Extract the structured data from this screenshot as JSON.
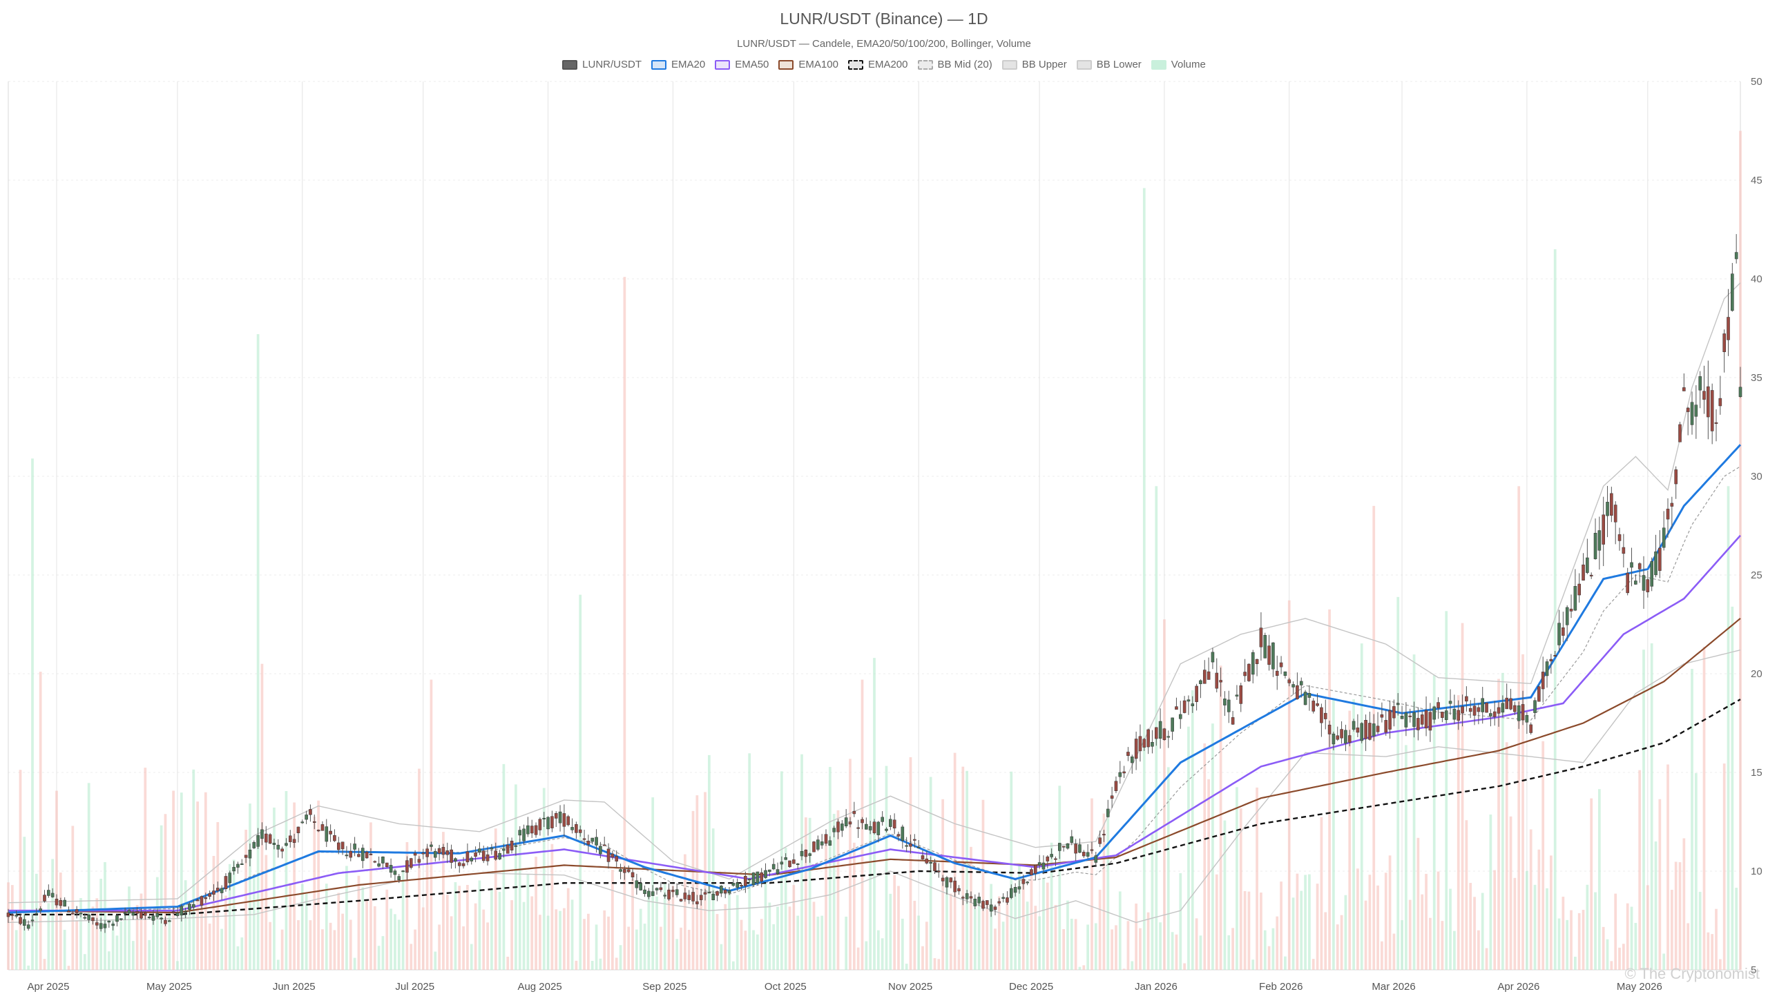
{
  "chart_data": {
    "type": "candlestick",
    "title": "LUNR/USDT (Binance) — 1D",
    "subtitle": "LUNR/USDT — Candele, EMA20/50/100/200, Bollinger, Volume",
    "legend": [
      {
        "name": "LUNR/USDT",
        "color": "#666666",
        "border": "#555555",
        "style": "solid"
      },
      {
        "name": "EMA20",
        "color": "#d6e6f8",
        "border": "#1f7ae0",
        "style": "solid"
      },
      {
        "name": "EMA50",
        "color": "#ece4fb",
        "border": "#8b5cf6",
        "style": "solid"
      },
      {
        "name": "EMA100",
        "color": "#efe3d8",
        "border": "#8b4a2b",
        "style": "solid"
      },
      {
        "name": "EMA200",
        "color": "#e6e6e6",
        "border": "#111111",
        "style": "dashed"
      },
      {
        "name": "BB Mid (20)",
        "color": "#ececec",
        "border": "#aaaaaa",
        "style": "dashed"
      },
      {
        "name": "BB Upper",
        "color": "#e4e4e4",
        "border": "#cccccc",
        "style": "solid"
      },
      {
        "name": "BB Lower",
        "color": "#e4e4e4",
        "border": "#cccccc",
        "style": "solid"
      },
      {
        "name": "Volume",
        "color": "#c9f0dc",
        "border": "#c9f0dc",
        "style": "solid"
      }
    ],
    "y_axis": {
      "min": 5,
      "max": 50,
      "ticks": [
        5,
        10,
        15,
        20,
        25,
        30,
        35,
        40,
        45,
        50
      ],
      "position": "right"
    },
    "x_axis": {
      "start": "2025-03-20",
      "end": "2026-05-24",
      "ticks": [
        {
          "date": "2025-04-01",
          "label": "Apr 2025"
        },
        {
          "date": "2025-05-01",
          "label": "May 2025"
        },
        {
          "date": "2025-06-01",
          "label": "Jun 2025"
        },
        {
          "date": "2025-07-01",
          "label": "Jul 2025"
        },
        {
          "date": "2025-08-01",
          "label": "Aug 2025"
        },
        {
          "date": "2025-09-01",
          "label": "Sep 2025"
        },
        {
          "date": "2025-10-01",
          "label": "Oct 2025"
        },
        {
          "date": "2025-11-01",
          "label": "Nov 2025"
        },
        {
          "date": "2025-12-01",
          "label": "Dec 2025"
        },
        {
          "date": "2026-01-01",
          "label": "Jan 2026"
        },
        {
          "date": "2026-02-01",
          "label": "Feb 2026"
        },
        {
          "date": "2026-03-01",
          "label": "Mar 2026"
        },
        {
          "date": "2026-04-01",
          "label": "Apr 2026"
        },
        {
          "date": "2026-05-01",
          "label": "May 2026"
        }
      ]
    },
    "grid": true,
    "price_anchors": [
      [
        "2025-03-20",
        7.8
      ],
      [
        "2025-03-25",
        7.3
      ],
      [
        "2025-03-30",
        8.8
      ],
      [
        "2025-04-05",
        8.0
      ],
      [
        "2025-04-12",
        7.2
      ],
      [
        "2025-04-20",
        7.9
      ],
      [
        "2025-04-28",
        7.6
      ],
      [
        "2025-05-05",
        8.3
      ],
      [
        "2025-05-12",
        9.2
      ],
      [
        "2025-05-18",
        10.5
      ],
      [
        "2025-05-22",
        11.8
      ],
      [
        "2025-05-28",
        11.3
      ],
      [
        "2025-06-03",
        12.7
      ],
      [
        "2025-06-10",
        11.2
      ],
      [
        "2025-06-18",
        10.8
      ],
      [
        "2025-06-25",
        9.9
      ],
      [
        "2025-07-02",
        11.1
      ],
      [
        "2025-07-10",
        10.6
      ],
      [
        "2025-07-20",
        11.0
      ],
      [
        "2025-07-28",
        12.2
      ],
      [
        "2025-08-05",
        12.7
      ],
      [
        "2025-08-12",
        11.5
      ],
      [
        "2025-08-18",
        10.4
      ],
      [
        "2025-08-25",
        9.0
      ],
      [
        "2025-09-01",
        8.8
      ],
      [
        "2025-09-08",
        8.6
      ],
      [
        "2025-09-15",
        9.2
      ],
      [
        "2025-09-22",
        9.7
      ],
      [
        "2025-10-01",
        10.6
      ],
      [
        "2025-10-10",
        11.6
      ],
      [
        "2025-10-15",
        12.8
      ],
      [
        "2025-10-20",
        12.0
      ],
      [
        "2025-10-25",
        12.6
      ],
      [
        "2025-11-01",
        11.0
      ],
      [
        "2025-11-08",
        9.5
      ],
      [
        "2025-11-15",
        8.5
      ],
      [
        "2025-11-20",
        8.2
      ],
      [
        "2025-11-25",
        9.0
      ],
      [
        "2025-12-01",
        10.2
      ],
      [
        "2025-12-08",
        11.5
      ],
      [
        "2025-12-15",
        10.6
      ],
      [
        "2025-12-20",
        14.5
      ],
      [
        "2025-12-25",
        16.2
      ],
      [
        "2026-01-02",
        17.3
      ],
      [
        "2026-01-08",
        18.8
      ],
      [
        "2026-01-13",
        20.4
      ],
      [
        "2026-01-18",
        17.8
      ],
      [
        "2026-01-25",
        21.8
      ],
      [
        "2026-01-31",
        20.0
      ],
      [
        "2026-02-05",
        18.7
      ],
      [
        "2026-02-12",
        16.9
      ],
      [
        "2026-02-20",
        17.1
      ],
      [
        "2026-02-28",
        18.0
      ],
      [
        "2026-03-05",
        17.4
      ],
      [
        "2026-03-12",
        18.2
      ],
      [
        "2026-03-20",
        18.2
      ],
      [
        "2026-03-28",
        18.4
      ],
      [
        "2026-04-02",
        17.5
      ],
      [
        "2026-04-08",
        21.5
      ],
      [
        "2026-04-12",
        23.6
      ],
      [
        "2026-04-17",
        25.6
      ],
      [
        "2026-04-22",
        28.8
      ],
      [
        "2026-04-26",
        24.8
      ],
      [
        "2026-05-01",
        24.8
      ],
      [
        "2026-05-05",
        26.5
      ],
      [
        "2026-05-10",
        33.5
      ],
      [
        "2026-05-14",
        34.0
      ],
      [
        "2026-05-18",
        33.0
      ],
      [
        "2026-05-21",
        37.5
      ],
      [
        "2026-05-23",
        40.5
      ],
      [
        "2026-05-24",
        35.0
      ]
    ],
    "ema_anchors": {
      "EMA20": [
        [
          "2025-03-20",
          7.9
        ],
        [
          "2025-05-01",
          8.2
        ],
        [
          "2025-06-05",
          11.0
        ],
        [
          "2025-07-10",
          10.9
        ],
        [
          "2025-08-05",
          11.8
        ],
        [
          "2025-08-25",
          10.2
        ],
        [
          "2025-09-15",
          9.0
        ],
        [
          "2025-10-05",
          10.1
        ],
        [
          "2025-10-25",
          11.8
        ],
        [
          "2025-11-10",
          10.4
        ],
        [
          "2025-11-25",
          9.6
        ],
        [
          "2025-12-15",
          10.7
        ],
        [
          "2026-01-05",
          15.5
        ],
        [
          "2026-02-05",
          19.0
        ],
        [
          "2026-03-01",
          18.0
        ],
        [
          "2026-04-02",
          18.8
        ],
        [
          "2026-04-20",
          24.8
        ],
        [
          "2026-05-01",
          25.3
        ],
        [
          "2026-05-10",
          28.5
        ],
        [
          "2026-05-24",
          31.6
        ]
      ],
      "EMA50": [
        [
          "2025-03-20",
          8.0
        ],
        [
          "2025-05-01",
          8.0
        ],
        [
          "2025-06-10",
          9.9
        ],
        [
          "2025-08-05",
          11.1
        ],
        [
          "2025-09-20",
          9.6
        ],
        [
          "2025-10-25",
          11.1
        ],
        [
          "2025-11-30",
          10.2
        ],
        [
          "2025-12-20",
          10.8
        ],
        [
          "2026-01-25",
          15.3
        ],
        [
          "2026-02-25",
          17.0
        ],
        [
          "2026-03-25",
          17.8
        ],
        [
          "2026-04-10",
          18.5
        ],
        [
          "2026-04-25",
          22.0
        ],
        [
          "2026-05-10",
          23.8
        ],
        [
          "2026-05-24",
          27.0
        ]
      ],
      "EMA100": [
        [
          "2025-03-20",
          8.0
        ],
        [
          "2025-05-01",
          7.9
        ],
        [
          "2025-06-15",
          9.3
        ],
        [
          "2025-08-05",
          10.3
        ],
        [
          "2025-09-25",
          9.8
        ],
        [
          "2025-10-25",
          10.6
        ],
        [
          "2025-11-30",
          10.3
        ],
        [
          "2025-12-20",
          10.7
        ],
        [
          "2026-01-25",
          13.7
        ],
        [
          "2026-02-25",
          15.0
        ],
        [
          "2026-03-25",
          16.1
        ],
        [
          "2026-04-15",
          17.5
        ],
        [
          "2026-05-05",
          19.6
        ],
        [
          "2026-05-24",
          22.8
        ]
      ],
      "EMA200": [
        [
          "2025-03-20",
          7.8
        ],
        [
          "2025-05-01",
          7.8
        ],
        [
          "2025-06-15",
          8.5
        ],
        [
          "2025-08-05",
          9.4
        ],
        [
          "2025-09-25",
          9.4
        ],
        [
          "2025-11-01",
          10.0
        ],
        [
          "2025-12-01",
          9.9
        ],
        [
          "2025-12-20",
          10.4
        ],
        [
          "2026-01-25",
          12.4
        ],
        [
          "2026-02-25",
          13.4
        ],
        [
          "2026-03-25",
          14.3
        ],
        [
          "2026-04-15",
          15.3
        ],
        [
          "2026-05-05",
          16.5
        ],
        [
          "2026-05-24",
          18.7
        ]
      ]
    },
    "bollinger_anchors": {
      "upper": [
        [
          "2025-03-20",
          8.4
        ],
        [
          "2025-05-01",
          8.6
        ],
        [
          "2025-05-20",
          11.8
        ],
        [
          "2025-06-05",
          13.3
        ],
        [
          "2025-06-25",
          12.4
        ],
        [
          "2025-07-15",
          12.0
        ],
        [
          "2025-08-05",
          13.6
        ],
        [
          "2025-08-15",
          13.5
        ],
        [
          "2025-09-01",
          10.5
        ],
        [
          "2025-09-15",
          9.6
        ],
        [
          "2025-10-10",
          12.5
        ],
        [
          "2025-10-25",
          13.8
        ],
        [
          "2025-11-10",
          12.4
        ],
        [
          "2025-11-30",
          11.2
        ],
        [
          "2025-12-15",
          11.5
        ],
        [
          "2026-01-05",
          20.5
        ],
        [
          "2026-01-20",
          22.0
        ],
        [
          "2026-02-05",
          22.8
        ],
        [
          "2026-02-25",
          21.5
        ],
        [
          "2026-03-10",
          19.8
        ],
        [
          "2026-04-02",
          19.5
        ],
        [
          "2026-04-20",
          29.5
        ],
        [
          "2026-04-28",
          31.0
        ],
        [
          "2026-05-06",
          29.3
        ],
        [
          "2026-05-12",
          34.5
        ],
        [
          "2026-05-20",
          39.0
        ],
        [
          "2026-05-24",
          39.8
        ]
      ],
      "lower": [
        [
          "2025-03-20",
          7.4
        ],
        [
          "2025-05-01",
          7.6
        ],
        [
          "2025-05-20",
          7.8
        ],
        [
          "2025-06-05",
          8.6
        ],
        [
          "2025-06-25",
          9.5
        ],
        [
          "2025-07-15",
          9.9
        ],
        [
          "2025-08-05",
          9.8
        ],
        [
          "2025-08-25",
          8.5
        ],
        [
          "2025-09-10",
          8.0
        ],
        [
          "2025-09-25",
          8.2
        ],
        [
          "2025-10-10",
          8.8
        ],
        [
          "2025-10-25",
          10.0
        ],
        [
          "2025-11-10",
          8.7
        ],
        [
          "2025-11-25",
          7.6
        ],
        [
          "2025-12-10",
          8.5
        ],
        [
          "2025-12-25",
          7.4
        ],
        [
          "2026-01-05",
          8.0
        ],
        [
          "2026-01-20",
          12.0
        ],
        [
          "2026-02-05",
          16.0
        ],
        [
          "2026-02-25",
          15.8
        ],
        [
          "2026-03-10",
          16.3
        ],
        [
          "2026-04-02",
          15.8
        ],
        [
          "2026-04-15",
          15.5
        ],
        [
          "2026-04-28",
          19.0
        ],
        [
          "2026-05-10",
          20.5
        ],
        [
          "2026-05-24",
          21.2
        ]
      ]
    },
    "volume_scale_note": "Volume shown as tall translucent bars behind price (green = up day, red = down day)",
    "volume_spikes": [
      [
        "2025-03-26",
        30.9,
        "up"
      ],
      [
        "2025-03-28",
        20.1,
        "down"
      ],
      [
        "2025-05-21",
        37.2,
        "up"
      ],
      [
        "2025-05-22",
        20.5,
        "down"
      ],
      [
        "2025-07-03",
        19.7,
        "down"
      ],
      [
        "2025-08-09",
        24.0,
        "up"
      ],
      [
        "2025-08-20",
        40.1,
        "down"
      ],
      [
        "2025-10-18",
        19.7,
        "down"
      ],
      [
        "2025-10-21",
        20.8,
        "up"
      ],
      [
        "2025-12-27",
        44.6,
        "up"
      ],
      [
        "2025-12-30",
        29.5,
        "up"
      ],
      [
        "2026-02-22",
        28.5,
        "down"
      ],
      [
        "2026-03-30",
        29.5,
        "down"
      ],
      [
        "2026-04-08",
        41.5,
        "up"
      ],
      [
        "2026-05-21",
        29.5,
        "up"
      ],
      [
        "2026-05-24",
        47.5,
        "down"
      ]
    ],
    "watermark": "© The Cryptonomist"
  }
}
